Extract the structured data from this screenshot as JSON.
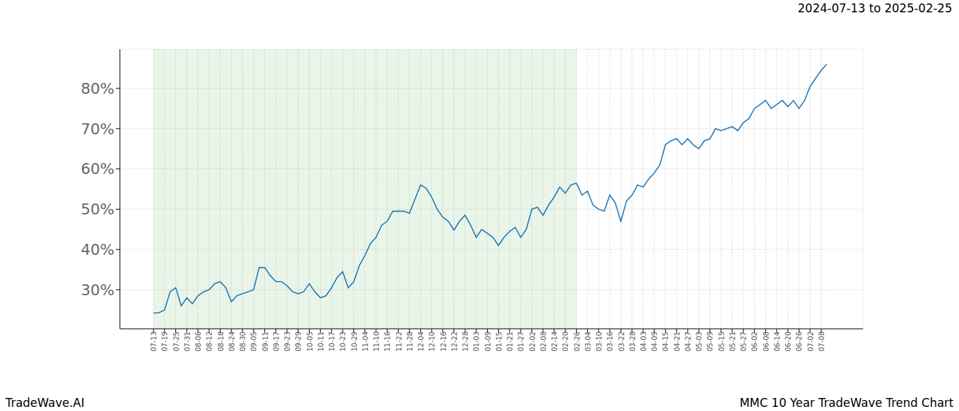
{
  "chart_data": {
    "type": "line",
    "title": "2024-07-13 to 2025-02-25",
    "annotations": [
      "TradeWave.AI",
      "MMC 10 Year TradeWave Trend Chart"
    ],
    "categories": [
      "07-13",
      null,
      "07-19",
      null,
      "07-25",
      null,
      "07-31",
      null,
      "08-06",
      null,
      "08-12",
      null,
      "08-18",
      null,
      "08-24",
      null,
      "08-30",
      null,
      "09-05",
      null,
      "09-11",
      null,
      "09-17",
      null,
      "09-23",
      null,
      "09-29",
      null,
      "10-05",
      null,
      "10-11",
      null,
      "10-17",
      null,
      "10-23",
      null,
      "10-29",
      null,
      "11-04",
      null,
      "11-10",
      null,
      "11-16",
      null,
      "11-22",
      null,
      "11-28",
      null,
      "12-04",
      null,
      "12-10",
      null,
      "12-16",
      null,
      "12-22",
      null,
      "12-28",
      null,
      "01-03",
      null,
      "01-09",
      null,
      "01-15",
      null,
      "01-21",
      null,
      "01-27",
      null,
      "02-02",
      null,
      "02-08",
      null,
      "02-14",
      null,
      "02-20",
      null,
      "02-26",
      null,
      "03-04",
      null,
      "03-10",
      null,
      "03-16",
      null,
      "03-22",
      null,
      "03-28",
      null,
      "04-03",
      null,
      "04-09",
      null,
      "04-15",
      null,
      "04-21",
      null,
      "04-27",
      null,
      "05-03",
      null,
      "05-09",
      null,
      "05-15",
      null,
      "05-21",
      null,
      "05-27",
      null,
      "06-02",
      null,
      "06-08",
      null,
      "06-14",
      null,
      "06-20",
      null,
      "06-26",
      null,
      "07-02",
      null,
      "07-08",
      null
    ],
    "values": [
      24.2,
      24.3,
      25,
      29.5,
      30.5,
      26,
      28,
      26.5,
      28.5,
      29.5,
      30,
      31.5,
      32,
      30.5,
      27,
      28.5,
      29,
      29.5,
      30,
      35.5,
      35.5,
      33.5,
      32,
      32,
      31,
      29.5,
      29,
      29.5,
      31.5,
      29.5,
      28,
      28.5,
      30.5,
      33,
      34.5,
      30.5,
      32,
      36,
      38.5,
      41.5,
      43,
      46,
      47,
      49.5,
      49.5,
      49.5,
      49,
      52.5,
      56,
      55.2,
      53,
      50,
      48,
      47,
      44.8,
      47,
      48.5,
      46,
      43,
      45,
      44,
      43,
      41,
      43,
      44.5,
      45.5,
      43,
      45,
      50,
      50.5,
      48.5,
      51,
      53,
      55.5,
      54,
      56,
      56.5,
      53.5,
      54.5,
      51,
      50,
      49.5,
      53.5,
      51.5,
      47,
      52,
      53.5,
      56,
      55.5,
      57.5,
      59,
      61,
      66,
      67,
      67.5,
      66,
      67.5,
      66,
      65,
      67,
      67.5,
      70,
      69.5,
      70,
      70.5,
      69.5,
      71.5,
      72.5,
      75,
      76,
      77,
      75,
      76,
      77,
      75.5,
      77,
      75,
      77,
      80.5,
      82.5,
      84.5,
      86
    ],
    "color": "#1f77b4",
    "ylim": [
      20.3,
      89.7
    ],
    "yticks": [
      {
        "value": 30,
        "label": "30%"
      },
      {
        "value": 40,
        "label": "40%"
      },
      {
        "value": 50,
        "label": "50%"
      },
      {
        "value": 60,
        "label": "60%"
      },
      {
        "value": 70,
        "label": "70%"
      },
      {
        "value": 80,
        "label": "80%"
      }
    ],
    "shaded_range": [
      "07-13",
      "02-26"
    ],
    "grid": true
  }
}
